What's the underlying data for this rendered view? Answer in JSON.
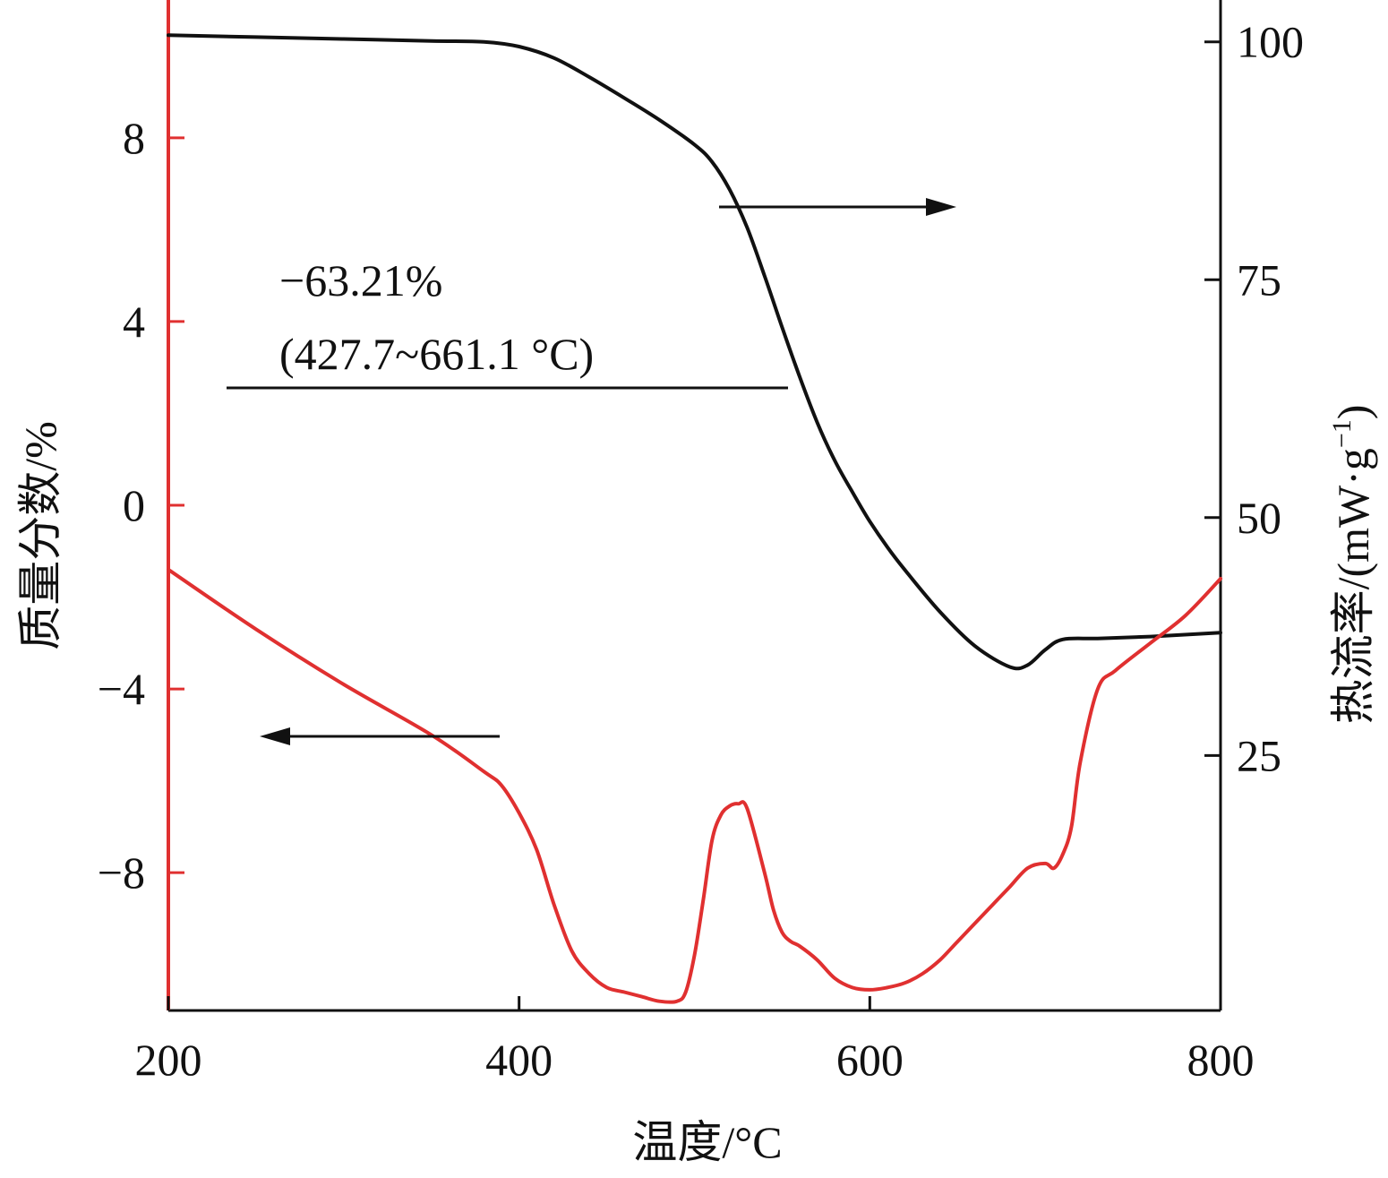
{
  "chart_data": {
    "type": "line",
    "xlabel": "温度/°C",
    "ylabel_left": "质量分数/%",
    "ylabel_right_main": "热流率/(mW·g",
    "ylabel_right_sup": "−1",
    "ylabel_right_close": ")",
    "xlim": [
      200,
      800
    ],
    "ylim_left": [
      -11,
      11
    ],
    "ylim_right": [
      -1.8,
      104.4
    ],
    "xticks": [
      {
        "v": 200,
        "label": "200"
      },
      {
        "v": 400,
        "label": "400"
      },
      {
        "v": 600,
        "label": "600"
      },
      {
        "v": 800,
        "label": "800"
      }
    ],
    "yticks_left": [
      {
        "v": 8,
        "label": "8"
      },
      {
        "v": 4,
        "label": "4"
      },
      {
        "v": 0,
        "label": "0"
      },
      {
        "v": -4,
        "label": "−4"
      },
      {
        "v": -8,
        "label": "−8"
      }
    ],
    "yticks_right": [
      {
        "v": 100,
        "label": "100"
      },
      {
        "v": 75,
        "label": "75"
      },
      {
        "v": 50,
        "label": "50"
      },
      {
        "v": 25,
        "label": "25"
      }
    ],
    "colors": {
      "left_axis": "#e03030",
      "right_axis": "#111111",
      "mass_series": "#111111",
      "heatflow_series": "#e03030"
    },
    "annotations": {
      "line1": "−63.21%",
      "line2": "(427.7~661.1 °C)"
    },
    "series": [
      {
        "id": "mass",
        "axis": "right",
        "color": "#111111",
        "x": [
          200,
          250,
          300,
          350,
          380,
          400,
          420,
          440,
          460,
          480,
          500,
          510,
          520,
          530,
          540,
          550,
          560,
          570,
          580,
          590,
          600,
          610,
          620,
          640,
          660,
          680,
          690,
          700,
          710,
          730,
          760,
          800
        ],
        "y": [
          100.7,
          100.5,
          100.3,
          100.1,
          100,
          99.5,
          98.3,
          96.3,
          94.1,
          91.8,
          89.2,
          87.4,
          84.5,
          80.5,
          75.4,
          70.0,
          64.8,
          60.0,
          56.0,
          52.7,
          49.6,
          46.9,
          44.5,
          40.1,
          36.5,
          34.3,
          34.5,
          36.1,
          37.2,
          37.3,
          37.5,
          37.9
        ]
      },
      {
        "id": "heatflow",
        "axis": "left",
        "color": "#e03030",
        "x": [
          200,
          250,
          300,
          350,
          380,
          390,
          400,
          410,
          420,
          430,
          440,
          450,
          460,
          470,
          480,
          490,
          495,
          500,
          505,
          510,
          515,
          520,
          525,
          530,
          540,
          545,
          550,
          555,
          560,
          570,
          580,
          590,
          600,
          610,
          620,
          630,
          640,
          650,
          660,
          670,
          680,
          690,
          700,
          705,
          710,
          715,
          720,
          730,
          740,
          760,
          780,
          800
        ],
        "y": [
          -1.4,
          -2.7,
          -3.9,
          -5.0,
          -5.8,
          -6.1,
          -6.7,
          -7.5,
          -8.7,
          -9.7,
          -10.2,
          -10.5,
          -10.6,
          -10.7,
          -10.8,
          -10.8,
          -10.6,
          -9.8,
          -8.6,
          -7.3,
          -6.75,
          -6.55,
          -6.5,
          -6.6,
          -8.0,
          -8.8,
          -9.3,
          -9.5,
          -9.6,
          -9.9,
          -10.3,
          -10.5,
          -10.55,
          -10.5,
          -10.4,
          -10.2,
          -9.9,
          -9.5,
          -9.1,
          -8.7,
          -8.3,
          -7.9,
          -7.8,
          -7.9,
          -7.6,
          -7.0,
          -5.6,
          -4.0,
          -3.6,
          -3.0,
          -2.4,
          -1.6
        ]
      }
    ]
  }
}
